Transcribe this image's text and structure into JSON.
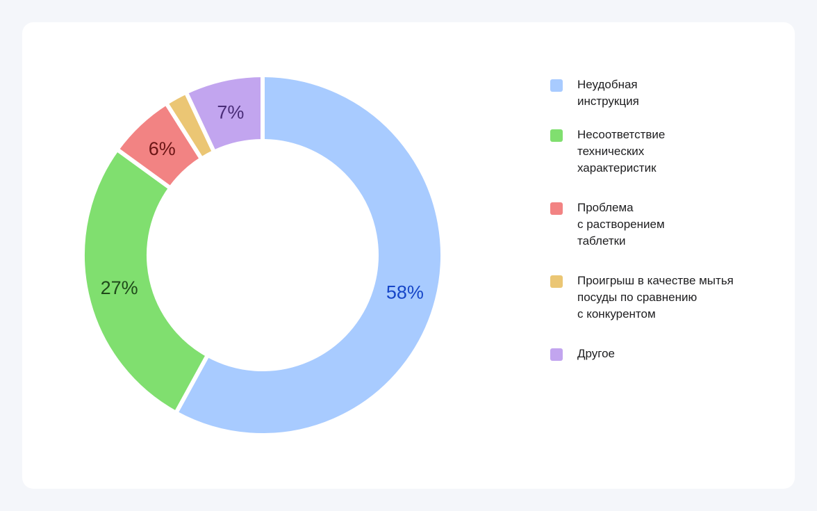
{
  "chart_data": {
    "type": "pie",
    "variant": "donut",
    "title": "",
    "legend_placement": "right",
    "slices": [
      {
        "name": "Неудобная инструкция",
        "lines": [
          "Неудобная",
          "инструкция"
        ],
        "value": 58,
        "label": "58%",
        "color": "#a8cbff",
        "label_color": "#1646c8"
      },
      {
        "name": "Несоответствие технических характеристик",
        "lines": [
          "Несоответствие",
          "технических",
          "характеристик"
        ],
        "value": 27,
        "label": "27%",
        "color": "#80df6f",
        "label_color": "#1f4a1a"
      },
      {
        "name": "Проблема с растворением таблетки",
        "lines": [
          "Проблема",
          "с растворением",
          "таблетки"
        ],
        "value": 6,
        "label": "6%",
        "color": "#f28383",
        "label_color": "#6b1515"
      },
      {
        "name": "Проигрыш в качестве мытья посуды по сравнению с конкурентом",
        "lines": [
          "Проигрыш в качестве мытья",
          "посуды по сравнению",
          "с конкурентом"
        ],
        "value": 2,
        "label": null,
        "color": "#ebc674",
        "label_color": "#6b5010"
      },
      {
        "name": "Другое",
        "lines": [
          "Другое"
        ],
        "value": 7,
        "label": "7%",
        "color": "#c2a5ef",
        "label_color": "#4a2d78"
      }
    ]
  }
}
